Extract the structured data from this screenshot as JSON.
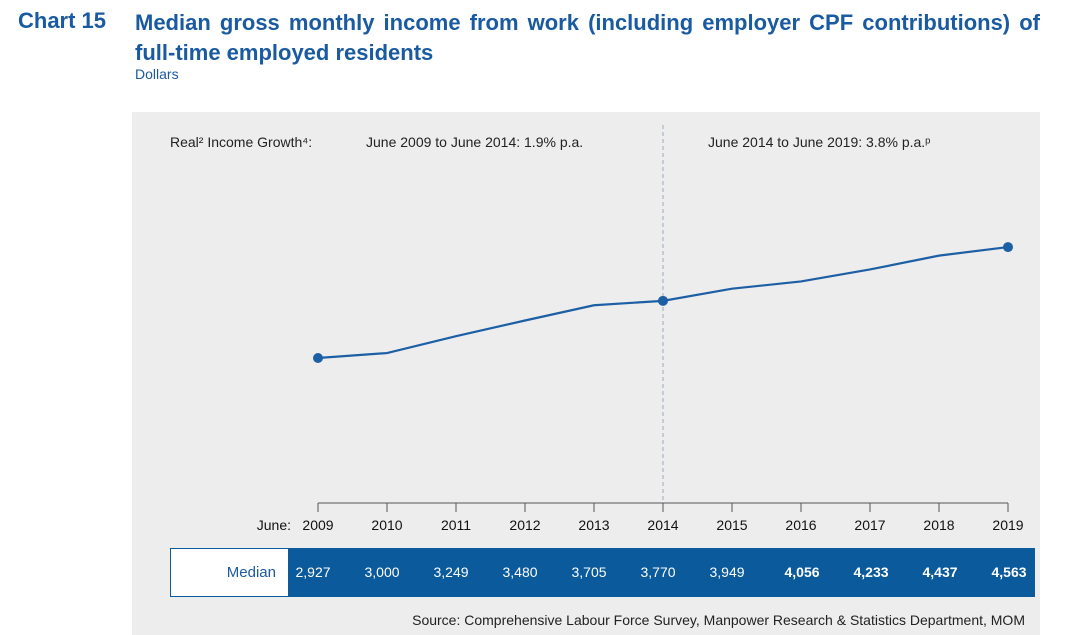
{
  "header": {
    "chart_number": "Chart 15",
    "title": "Median gross monthly income from work (including employer CPF contributions) of full-time employed residents",
    "unit": "Dollars"
  },
  "annotations": {
    "label": "Real² Income Growth⁴:",
    "period1": "June 2009 to June 2014: 1.9% p.a.",
    "period2": "June 2014 to June 2019: 3.8% p.a.ᵖ"
  },
  "source": "Source: Comprehensive Labour Force Survey, Manpower Research & Statistics Department, MOM",
  "chart_data": {
    "type": "line",
    "title": "Median gross monthly income from work (including employer CPF contributions) of full-time employed residents",
    "ylabel": "Dollars",
    "xlabel_prefix": "June:",
    "x": [
      "2009",
      "2010",
      "2011",
      "2012",
      "2013",
      "2014",
      "2015",
      "2016",
      "2017",
      "2018",
      "2019"
    ],
    "series": [
      {
        "name": "Median",
        "values": [
          2927,
          3000,
          3249,
          3480,
          3705,
          3770,
          3949,
          4056,
          4233,
          4437,
          4563
        ]
      }
    ],
    "value_labels": [
      "2,927",
      "3,000",
      "3,249",
      "3,480",
      "3,705",
      "3,770",
      "3,949",
      "4,056",
      "4,233",
      "4,437",
      "4,563"
    ],
    "markers_at": [
      "2009",
      "2014",
      "2019"
    ],
    "divider_at": "2014",
    "color": "#1d5fa5",
    "grid": false
  }
}
